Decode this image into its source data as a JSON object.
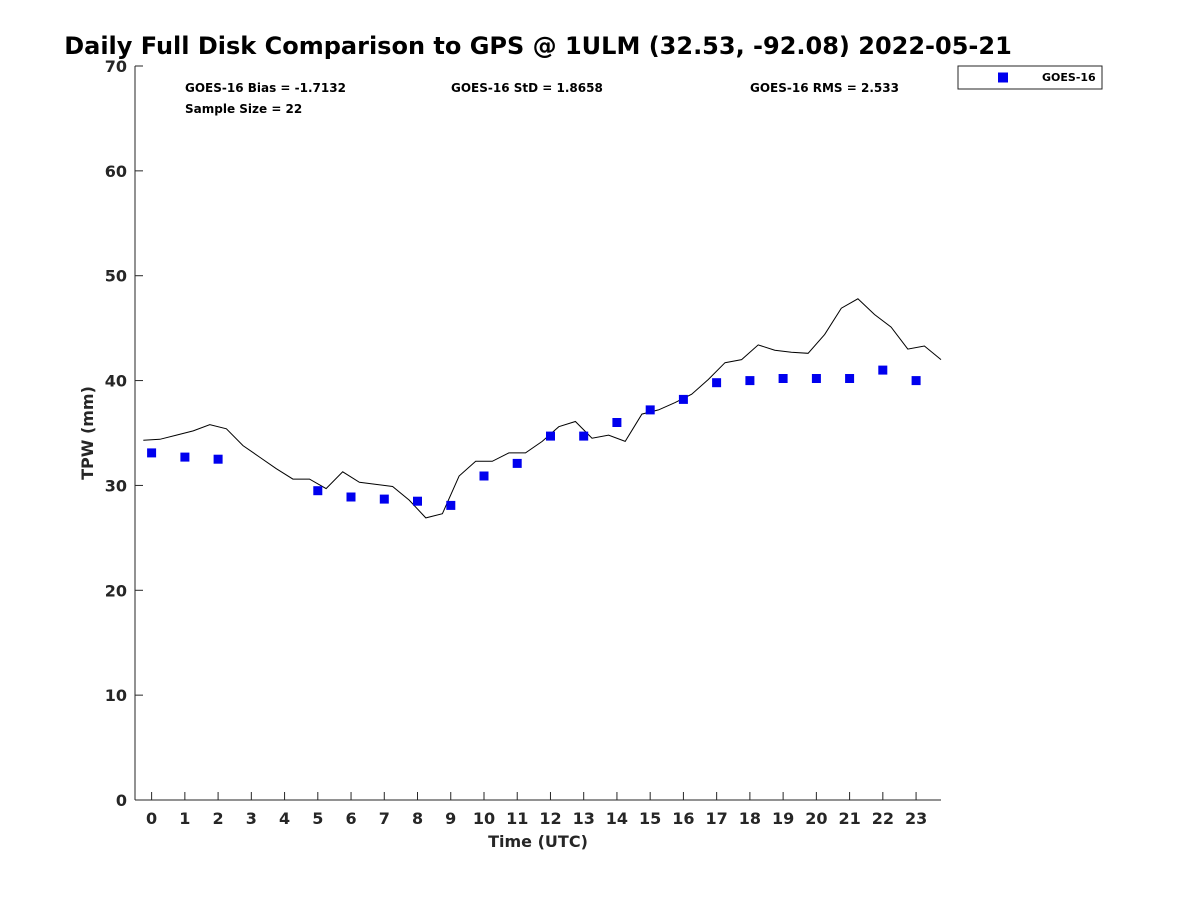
{
  "chart_data": {
    "type": "scatter",
    "title": "Daily Full Disk Comparison to GPS @ 1ULM (32.53, -92.08) 2022-05-21",
    "xlabel": "Time (UTC)",
    "ylabel": "TPW (mm)",
    "xlim": [
      -0.5,
      23.75
    ],
    "ylim": [
      0,
      70
    ],
    "x_ticks": [
      0,
      1,
      2,
      3,
      4,
      5,
      6,
      7,
      8,
      9,
      10,
      11,
      12,
      13,
      14,
      15,
      16,
      17,
      18,
      19,
      20,
      21,
      22,
      23
    ],
    "y_ticks": [
      0,
      10,
      20,
      30,
      40,
      50,
      60,
      70
    ],
    "grid": false,
    "legend_position": "top-right",
    "annotations": {
      "bias": "GOES-16 Bias = -1.7132",
      "std": "GOES-16 StD = 1.8658",
      "rms": "GOES-16 RMS = 2.533",
      "sample_size": "Sample Size = 22"
    },
    "series": [
      {
        "name": "GOES-16",
        "kind": "scatter",
        "marker": "square",
        "color": "#0000ee",
        "x": [
          0,
          1,
          2,
          5,
          6,
          7,
          8,
          9,
          10,
          11,
          12,
          13,
          14,
          15,
          16,
          17,
          18,
          19,
          20,
          21,
          22,
          23
        ],
        "y": [
          33.1,
          32.7,
          32.5,
          29.5,
          28.9,
          28.7,
          28.5,
          28.1,
          30.9,
          32.1,
          34.7,
          34.7,
          36.0,
          37.2,
          38.2,
          39.8,
          40.0,
          40.2,
          40.2,
          40.2,
          41.0,
          40.0
        ]
      },
      {
        "kind": "line",
        "color": "#000000",
        "x": [
          -0.25,
          0.25,
          0.75,
          1.25,
          1.75,
          2.25,
          2.75,
          3.25,
          3.75,
          4.25,
          4.75,
          5.25,
          5.75,
          6.25,
          6.75,
          7.25,
          7.75,
          8.25,
          8.75,
          9.25,
          9.75,
          10.25,
          10.75,
          11.25,
          11.75,
          12.25,
          12.75,
          13.25,
          13.75,
          14.25,
          14.75,
          15.25,
          15.75,
          16.25,
          16.75,
          17.25,
          17.75,
          18.25,
          18.75,
          19.25,
          19.75,
          20.25,
          20.75,
          21.25,
          21.75,
          22.25,
          22.75,
          23.25,
          23.75
        ],
        "y": [
          34.3,
          34.4,
          34.8,
          35.2,
          35.8,
          35.4,
          33.8,
          32.7,
          31.6,
          30.6,
          30.6,
          29.7,
          31.3,
          30.3,
          30.1,
          29.9,
          28.6,
          26.9,
          27.3,
          30.9,
          32.3,
          32.3,
          33.1,
          33.1,
          34.2,
          35.6,
          36.1,
          34.5,
          34.8,
          34.2,
          36.8,
          37.2,
          37.9,
          38.7,
          40.1,
          41.7,
          42.0,
          43.4,
          42.9,
          42.7,
          42.6,
          44.4,
          46.9,
          47.8,
          46.3,
          45.1,
          43.0,
          43.3,
          42.0
        ]
      }
    ]
  }
}
